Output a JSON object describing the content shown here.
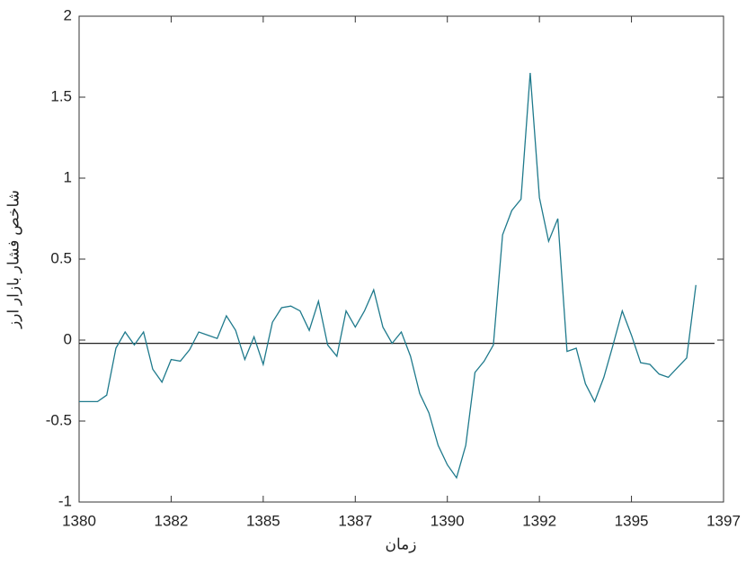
{
  "chart_data": {
    "type": "line",
    "x_label": "زمان",
    "y_label": "شاخص فشار بازار ارز",
    "x": [
      0,
      1,
      2,
      3,
      4,
      5,
      6,
      7,
      8,
      9,
      10,
      11,
      12,
      13,
      14,
      15,
      16,
      17,
      18,
      19,
      20,
      21,
      22,
      23,
      24,
      25,
      26,
      27,
      28,
      29,
      30,
      31,
      32,
      33,
      34,
      35,
      36,
      37,
      38,
      39,
      40,
      41,
      42,
      43,
      44,
      45,
      46,
      47,
      48,
      49,
      50,
      51,
      52,
      53,
      54,
      55,
      56,
      57,
      58,
      59,
      60,
      61,
      62,
      63,
      64,
      65,
      66,
      67
    ],
    "series": [
      {
        "color": "#1f7a8c",
        "values": [
          -0.38,
          -0.38,
          -0.38,
          -0.34,
          -0.05,
          0.05,
          -0.03,
          0.05,
          -0.18,
          -0.26,
          -0.12,
          -0.13,
          -0.06,
          0.05,
          0.03,
          0.01,
          0.15,
          0.06,
          -0.12,
          0.02,
          -0.15,
          0.11,
          0.2,
          0.21,
          0.18,
          0.06,
          0.24,
          -0.03,
          -0.1,
          0.18,
          0.08,
          0.18,
          0.31,
          0.08,
          -0.02,
          0.05,
          -0.1,
          -0.33,
          -0.45,
          -0.65,
          -0.77,
          -0.85,
          -0.65,
          -0.2,
          -0.13,
          -0.03,
          0.65,
          0.8,
          0.87,
          1.65,
          0.88,
          0.61,
          0.75,
          -0.07,
          -0.05,
          -0.27,
          -0.38,
          -0.23,
          -0.03,
          0.18,
          0.03,
          -0.14,
          -0.15,
          -0.21,
          -0.23,
          -0.17,
          -0.11,
          0.34
        ]
      }
    ],
    "reference_line": -0.02,
    "reference_color": "#222222",
    "xlim": [
      0,
      70
    ],
    "xticks": [
      {
        "value": 0,
        "label": "1380"
      },
      {
        "value": 10,
        "label": "1382"
      },
      {
        "value": 20,
        "label": "1385"
      },
      {
        "value": 30,
        "label": "1387"
      },
      {
        "value": 40,
        "label": "1390"
      },
      {
        "value": 50,
        "label": "1392"
      },
      {
        "value": 60,
        "label": "1395"
      },
      {
        "value": 70,
        "label": "1397"
      }
    ],
    "ylim": [
      -1,
      2
    ],
    "yticks": [
      -1,
      -0.5,
      0,
      0.5,
      1,
      1.5,
      2
    ]
  }
}
